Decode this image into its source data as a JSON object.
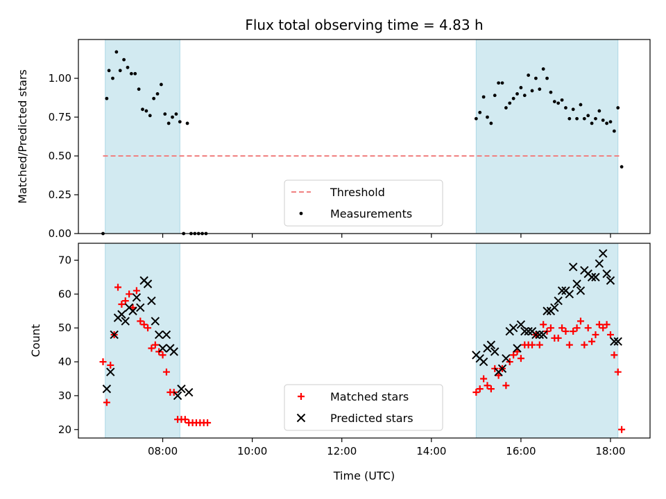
{
  "figure": {
    "title": "Flux total observing time = 4.83 h",
    "xlabel": "Time (UTC)"
  },
  "chart_data": [
    {
      "type": "scatter",
      "ylabel": "Matched/Predicted stars",
      "xlim": [
        "06:07",
        "18:53"
      ],
      "ylim": [
        0,
        1.25
      ],
      "x_ticks": [
        "08:00",
        "10:00",
        "12:00",
        "14:00",
        "16:00",
        "18:00"
      ],
      "x_ticks_labeled": false,
      "y_ticks": [
        0.0,
        0.25,
        0.5,
        0.75,
        1.0
      ],
      "y_tick_labels": [
        "0.00",
        "0.25",
        "0.50",
        "0.75",
        "1.00"
      ],
      "shaded_intervals": [
        [
          "06:43",
          "08:23"
        ],
        [
          "15:00",
          "18:10"
        ]
      ],
      "shade_color": "#add8e6",
      "legend_position": "lower-center",
      "legend": [
        "Threshold",
        "Measurements"
      ],
      "threshold": {
        "name": "Threshold",
        "value": 0.5,
        "x_range": [
          "06:40",
          "18:15"
        ],
        "color": "#f08080",
        "style": "dashed"
      },
      "series": [
        {
          "name": "Measurements",
          "marker": "dot",
          "color": "#000000",
          "points": [
            [
              "06:40",
              0.0
            ],
            [
              "06:45",
              0.87
            ],
            [
              "06:48",
              1.05
            ],
            [
              "06:53",
              1.0
            ],
            [
              "06:58",
              1.17
            ],
            [
              "07:03",
              1.05
            ],
            [
              "07:08",
              1.12
            ],
            [
              "07:13",
              1.07
            ],
            [
              "07:18",
              1.03
            ],
            [
              "07:23",
              1.03
            ],
            [
              "07:28",
              0.93
            ],
            [
              "07:33",
              0.8
            ],
            [
              "07:38",
              0.79
            ],
            [
              "07:43",
              0.76
            ],
            [
              "07:48",
              0.87
            ],
            [
              "07:53",
              0.9
            ],
            [
              "07:58",
              0.96
            ],
            [
              "08:03",
              0.77
            ],
            [
              "08:08",
              0.71
            ],
            [
              "08:13",
              0.75
            ],
            [
              "08:18",
              0.77
            ],
            [
              "08:23",
              0.72
            ],
            [
              "08:28",
              0.0
            ],
            [
              "08:33",
              0.71
            ],
            [
              "08:38",
              0.0
            ],
            [
              "08:43",
              0.0
            ],
            [
              "08:48",
              0.0
            ],
            [
              "08:53",
              0.0
            ],
            [
              "08:58",
              0.0
            ],
            [
              "15:00",
              0.74
            ],
            [
              "15:05",
              0.78
            ],
            [
              "15:10",
              0.88
            ],
            [
              "15:15",
              0.75
            ],
            [
              "15:20",
              0.71
            ],
            [
              "15:25",
              0.89
            ],
            [
              "15:30",
              0.97
            ],
            [
              "15:35",
              0.97
            ],
            [
              "15:40",
              0.81
            ],
            [
              "15:45",
              0.84
            ],
            [
              "15:50",
              0.87
            ],
            [
              "15:55",
              0.9
            ],
            [
              "16:00",
              0.94
            ],
            [
              "16:05",
              0.89
            ],
            [
              "16:10",
              1.02
            ],
            [
              "16:15",
              0.92
            ],
            [
              "16:20",
              1.0
            ],
            [
              "16:25",
              0.93
            ],
            [
              "16:30",
              1.06
            ],
            [
              "16:35",
              1.0
            ],
            [
              "16:40",
              0.91
            ],
            [
              "16:45",
              0.85
            ],
            [
              "16:50",
              0.84
            ],
            [
              "16:55",
              0.86
            ],
            [
              "17:00",
              0.81
            ],
            [
              "17:05",
              0.74
            ],
            [
              "17:10",
              0.8
            ],
            [
              "17:15",
              0.74
            ],
            [
              "17:20",
              0.83
            ],
            [
              "17:25",
              0.74
            ],
            [
              "17:30",
              0.76
            ],
            [
              "17:35",
              0.71
            ],
            [
              "17:40",
              0.74
            ],
            [
              "17:45",
              0.79
            ],
            [
              "17:50",
              0.73
            ],
            [
              "17:55",
              0.71
            ],
            [
              "18:00",
              0.72
            ],
            [
              "18:05",
              0.66
            ],
            [
              "18:10",
              0.81
            ],
            [
              "18:15",
              0.43
            ]
          ]
        }
      ]
    },
    {
      "type": "scatter",
      "ylabel": "Count",
      "xlim": [
        "06:07",
        "18:53"
      ],
      "ylim": [
        17.5,
        75
      ],
      "x_ticks": [
        "08:00",
        "10:00",
        "12:00",
        "14:00",
        "16:00",
        "18:00"
      ],
      "x_ticks_labeled": true,
      "y_ticks": [
        20,
        30,
        40,
        50,
        60,
        70
      ],
      "y_tick_labels": [
        "20",
        "30",
        "40",
        "50",
        "60",
        "70"
      ],
      "shaded_intervals": [
        [
          "06:43",
          "08:23"
        ],
        [
          "15:00",
          "18:10"
        ]
      ],
      "shade_color": "#add8e6",
      "legend_position": "lower-center",
      "legend": [
        "Matched stars",
        "Predicted stars"
      ],
      "series": [
        {
          "name": "Matched stars",
          "marker": "plus",
          "color": "#ff0000",
          "points": [
            [
              "06:40",
              40
            ],
            [
              "06:45",
              28
            ],
            [
              "06:50",
              39
            ],
            [
              "06:55",
              48
            ],
            [
              "07:00",
              62
            ],
            [
              "07:05",
              57
            ],
            [
              "07:10",
              58
            ],
            [
              "07:15",
              60
            ],
            [
              "07:20",
              56
            ],
            [
              "07:25",
              61
            ],
            [
              "07:30",
              52
            ],
            [
              "07:35",
              51
            ],
            [
              "07:40",
              50
            ],
            [
              "07:45",
              44
            ],
            [
              "07:50",
              45
            ],
            [
              "07:55",
              43
            ],
            [
              "08:00",
              42
            ],
            [
              "08:05",
              37
            ],
            [
              "08:10",
              31
            ],
            [
              "08:15",
              31
            ],
            [
              "08:20",
              23
            ],
            [
              "08:25",
              23
            ],
            [
              "08:30",
              23
            ],
            [
              "08:35",
              22
            ],
            [
              "08:40",
              22
            ],
            [
              "08:45",
              22
            ],
            [
              "08:50",
              22
            ],
            [
              "08:55",
              22
            ],
            [
              "09:00",
              22
            ],
            [
              "15:00",
              31
            ],
            [
              "15:05",
              32
            ],
            [
              "15:10",
              35
            ],
            [
              "15:15",
              33
            ],
            [
              "15:20",
              32
            ],
            [
              "15:25",
              38
            ],
            [
              "15:30",
              36
            ],
            [
              "15:35",
              38
            ],
            [
              "15:40",
              33
            ],
            [
              "15:45",
              40
            ],
            [
              "15:50",
              42
            ],
            [
              "15:55",
              43
            ],
            [
              "16:00",
              41
            ],
            [
              "16:05",
              45
            ],
            [
              "16:10",
              45
            ],
            [
              "16:15",
              45
            ],
            [
              "16:20",
              48
            ],
            [
              "16:25",
              45
            ],
            [
              "16:30",
              51
            ],
            [
              "16:35",
              49
            ],
            [
              "16:40",
              50
            ],
            [
              "16:45",
              47
            ],
            [
              "16:50",
              47
            ],
            [
              "16:55",
              50
            ],
            [
              "17:00",
              49
            ],
            [
              "17:05",
              45
            ],
            [
              "17:10",
              49
            ],
            [
              "17:15",
              50
            ],
            [
              "17:20",
              52
            ],
            [
              "17:25",
              45
            ],
            [
              "17:30",
              50
            ],
            [
              "17:35",
              46
            ],
            [
              "17:40",
              48
            ],
            [
              "17:45",
              51
            ],
            [
              "17:50",
              50
            ],
            [
              "17:55",
              51
            ],
            [
              "18:00",
              48
            ],
            [
              "18:05",
              42
            ],
            [
              "18:10",
              37
            ],
            [
              "18:15",
              20
            ]
          ]
        },
        {
          "name": "Predicted stars",
          "marker": "x",
          "color": "#000000",
          "points": [
            [
              "06:45",
              32
            ],
            [
              "06:50",
              37
            ],
            [
              "06:55",
              48
            ],
            [
              "07:00",
              53
            ],
            [
              "07:05",
              54
            ],
            [
              "07:10",
              52
            ],
            [
              "07:15",
              56
            ],
            [
              "07:20",
              55
            ],
            [
              "07:25",
              59
            ],
            [
              "07:30",
              56
            ],
            [
              "07:35",
              64
            ],
            [
              "07:40",
              63
            ],
            [
              "07:45",
              58
            ],
            [
              "07:50",
              52
            ],
            [
              "07:55",
              48
            ],
            [
              "08:00",
              44
            ],
            [
              "08:05",
              48
            ],
            [
              "08:10",
              44
            ],
            [
              "08:15",
              43
            ],
            [
              "08:20",
              30
            ],
            [
              "08:25",
              32
            ],
            [
              "08:35",
              31
            ],
            [
              "15:00",
              42
            ],
            [
              "15:05",
              41
            ],
            [
              "15:10",
              40
            ],
            [
              "15:15",
              44
            ],
            [
              "15:20",
              45
            ],
            [
              "15:25",
              43
            ],
            [
              "15:30",
              37
            ],
            [
              "15:35",
              38
            ],
            [
              "15:40",
              41
            ],
            [
              "15:45",
              49
            ],
            [
              "15:50",
              50
            ],
            [
              "15:55",
              44
            ],
            [
              "16:00",
              51
            ],
            [
              "16:05",
              49
            ],
            [
              "16:10",
              49
            ],
            [
              "16:15",
              49
            ],
            [
              "16:20",
              48
            ],
            [
              "16:25",
              48
            ],
            [
              "16:30",
              48
            ],
            [
              "16:35",
              55
            ],
            [
              "16:40",
              55
            ],
            [
              "16:45",
              56
            ],
            [
              "16:50",
              58
            ],
            [
              "16:55",
              61
            ],
            [
              "17:00",
              61
            ],
            [
              "17:05",
              60
            ],
            [
              "17:10",
              68
            ],
            [
              "17:15",
              63
            ],
            [
              "17:20",
              61
            ],
            [
              "17:25",
              67
            ],
            [
              "17:30",
              66
            ],
            [
              "17:35",
              65
            ],
            [
              "17:40",
              65
            ],
            [
              "17:45",
              69
            ],
            [
              "17:50",
              72
            ],
            [
              "17:55",
              66
            ],
            [
              "18:00",
              64
            ],
            [
              "18:05",
              46
            ],
            [
              "18:10",
              46
            ]
          ]
        }
      ]
    }
  ]
}
